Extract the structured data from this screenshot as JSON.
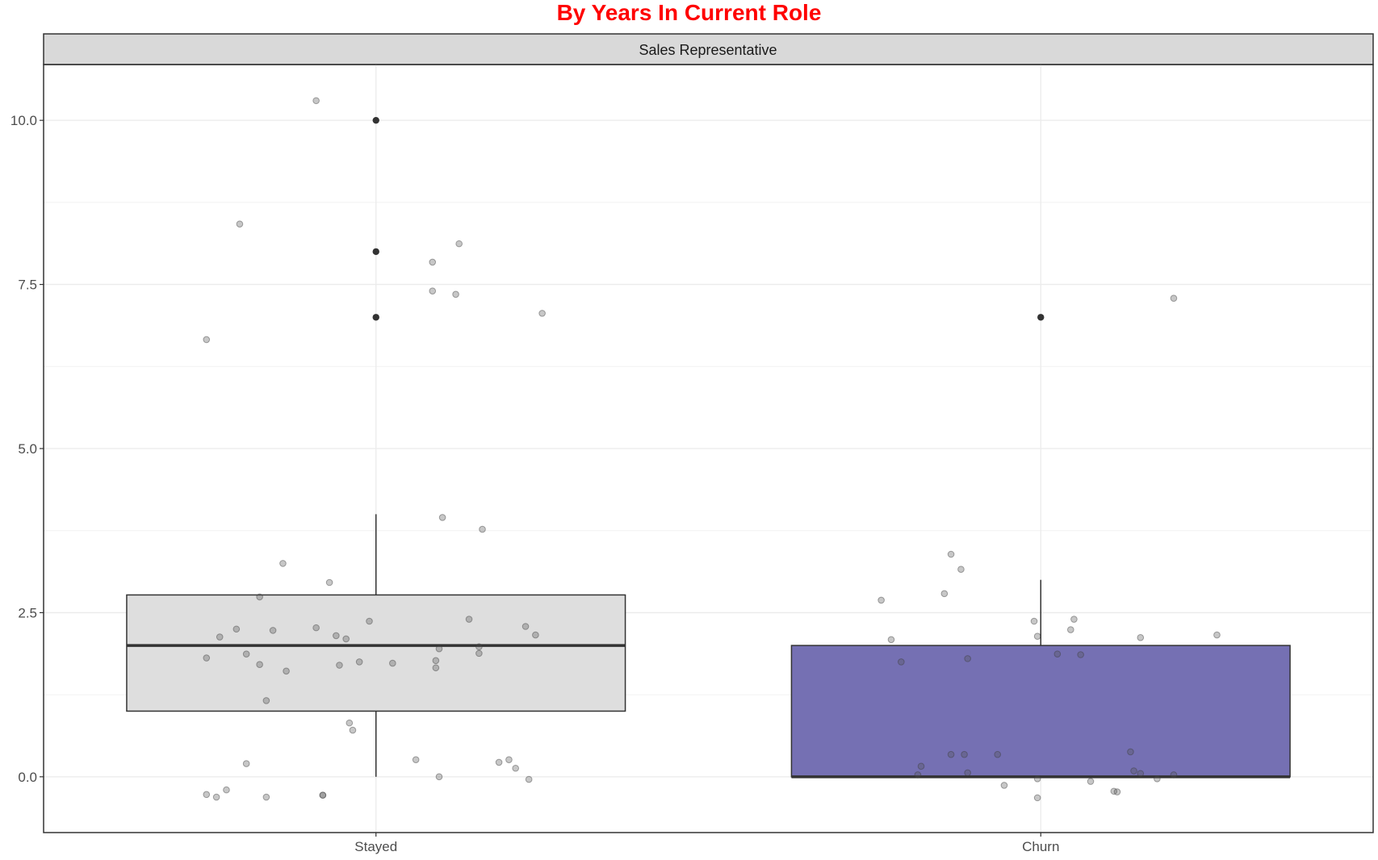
{
  "chart_data": {
    "type": "boxplot",
    "title": "By Years In Current Role",
    "facet_label": "Sales Representative",
    "xlabel": "",
    "ylabel": "",
    "categories": [
      "Stayed",
      "Churn"
    ],
    "ylim": [
      -0.85,
      10.85
    ],
    "y_ticks": [
      0,
      2.5,
      5,
      7.5,
      10
    ],
    "y_tick_labels": [
      "0.0",
      "2.5",
      "5.0",
      "7.5",
      "10.0"
    ],
    "grid": true,
    "colors": {
      "title": "#ff0000",
      "stayed_box": "#dedede",
      "churn_box": "#7570b3",
      "strip_bg": "#d9d9d9",
      "points": "#999999"
    },
    "boxes": [
      {
        "category": "Stayed",
        "q1": 1,
        "median": 2,
        "q3": 2.77,
        "whisker_low": 0,
        "whisker_high": 4,
        "outliers": [
          7,
          8,
          10
        ]
      },
      {
        "category": "Churn",
        "q1": 0,
        "median": 0,
        "q3": 2,
        "whisker_low": 0,
        "whisker_high": 3,
        "outliers": [
          7
        ]
      }
    ],
    "jitter": [
      {
        "category": "Stayed",
        "points": [
          [
            -0.51,
            -0.27
          ],
          [
            -0.48,
            -0.31
          ],
          [
            -0.45,
            -0.2
          ],
          [
            -0.33,
            -0.31
          ],
          [
            -0.16,
            -0.28
          ],
          [
            -0.16,
            -0.28
          ],
          [
            -0.39,
            0.2
          ],
          [
            -0.33,
            1.16
          ],
          [
            -0.27,
            1.61
          ],
          [
            -0.35,
            1.71
          ],
          [
            -0.39,
            1.87
          ],
          [
            -0.51,
            1.81
          ],
          [
            -0.47,
            2.13
          ],
          [
            -0.42,
            2.25
          ],
          [
            -0.31,
            2.23
          ],
          [
            -0.18,
            2.27
          ],
          [
            -0.12,
            2.15
          ],
          [
            -0.09,
            2.1
          ],
          [
            -0.05,
            1.75
          ],
          [
            -0.11,
            1.7
          ],
          [
            0.05,
            1.73
          ],
          [
            -0.02,
            2.37
          ],
          [
            -0.35,
            2.74
          ],
          [
            -0.28,
            3.25
          ],
          [
            -0.14,
            2.96
          ],
          [
            -0.08,
            0.82
          ],
          [
            -0.07,
            0.71
          ],
          [
            0.12,
            0.26
          ],
          [
            0.18,
            1.66
          ],
          [
            0.18,
            1.77
          ],
          [
            0.19,
            1.95
          ],
          [
            0.28,
            2.4
          ],
          [
            0.31,
            1.98
          ],
          [
            0.31,
            1.88
          ],
          [
            0.45,
            2.29
          ],
          [
            0.48,
            2.16
          ],
          [
            0.19,
            0.0
          ],
          [
            0.37,
            0.22
          ],
          [
            0.4,
            0.26
          ],
          [
            0.42,
            0.13
          ],
          [
            0.46,
            -0.04
          ],
          [
            0.2,
            3.95
          ],
          [
            0.32,
            3.77
          ],
          [
            -0.51,
            6.66
          ],
          [
            -0.41,
            8.42
          ],
          [
            -0.18,
            10.3
          ],
          [
            0.17,
            7.4
          ],
          [
            0.17,
            7.84
          ],
          [
            0.24,
            7.35
          ],
          [
            0.25,
            8.12
          ],
          [
            0.5,
            7.06
          ]
        ]
      },
      {
        "category": "Churn",
        "points": [
          [
            -0.48,
            2.69
          ],
          [
            -0.45,
            2.09
          ],
          [
            -0.42,
            1.75
          ],
          [
            -0.36,
            0.16
          ],
          [
            -0.37,
            0.03
          ],
          [
            -0.27,
            0.34
          ],
          [
            -0.23,
            0.34
          ],
          [
            -0.22,
            0.06
          ],
          [
            -0.13,
            0.34
          ],
          [
            -0.11,
            -0.13
          ],
          [
            -0.29,
            2.79
          ],
          [
            -0.27,
            3.39
          ],
          [
            -0.24,
            3.16
          ],
          [
            -0.22,
            1.8
          ],
          [
            -0.01,
            -0.03
          ],
          [
            -0.02,
            2.37
          ],
          [
            -0.01,
            2.14
          ],
          [
            0.05,
            1.87
          ],
          [
            0.09,
            2.24
          ],
          [
            0.1,
            2.4
          ],
          [
            0.12,
            1.86
          ],
          [
            0.15,
            -0.07
          ],
          [
            0.22,
            -0.22
          ],
          [
            0.23,
            -0.23
          ],
          [
            0.27,
            0.38
          ],
          [
            0.28,
            0.09
          ],
          [
            0.3,
            0.05
          ],
          [
            0.3,
            2.12
          ],
          [
            0.35,
            -0.03
          ],
          [
            0.4,
            0.03
          ],
          [
            0.4,
            7.29
          ],
          [
            0.53,
            2.16
          ],
          [
            -0.01,
            -0.32
          ]
        ]
      }
    ]
  }
}
